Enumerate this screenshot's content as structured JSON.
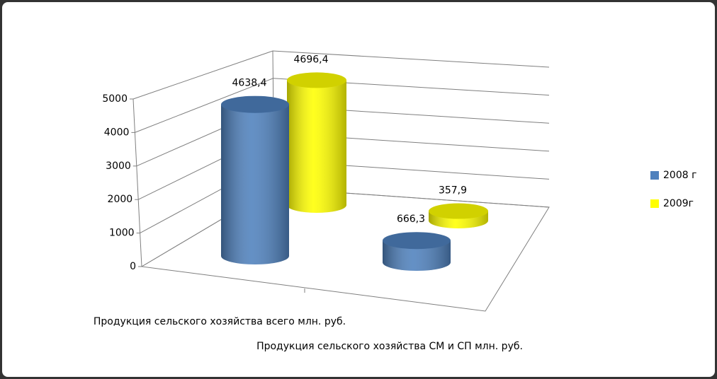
{
  "chart_data": {
    "type": "bar3d",
    "categories": [
      "Продукция сельского хозяйства всего млн. руб.",
      "Продукция сельского хозяйства  СМ и СП млн. руб."
    ],
    "series": [
      {
        "name": "2008 г",
        "color": "#4f81bd",
        "values": [
          4638.4,
          666.3
        ],
        "value_labels": [
          "4638,4",
          "666,3"
        ]
      },
      {
        "name": "2009г",
        "color": "#ffff00",
        "values": [
          4696.4,
          357.9
        ],
        "value_labels": [
          "4696,4",
          "357,9"
        ]
      }
    ],
    "ylim": [
      0,
      5000
    ],
    "yticks": [
      0,
      1000,
      2000,
      3000,
      4000,
      5000
    ],
    "grid": true,
    "legend": "right"
  }
}
